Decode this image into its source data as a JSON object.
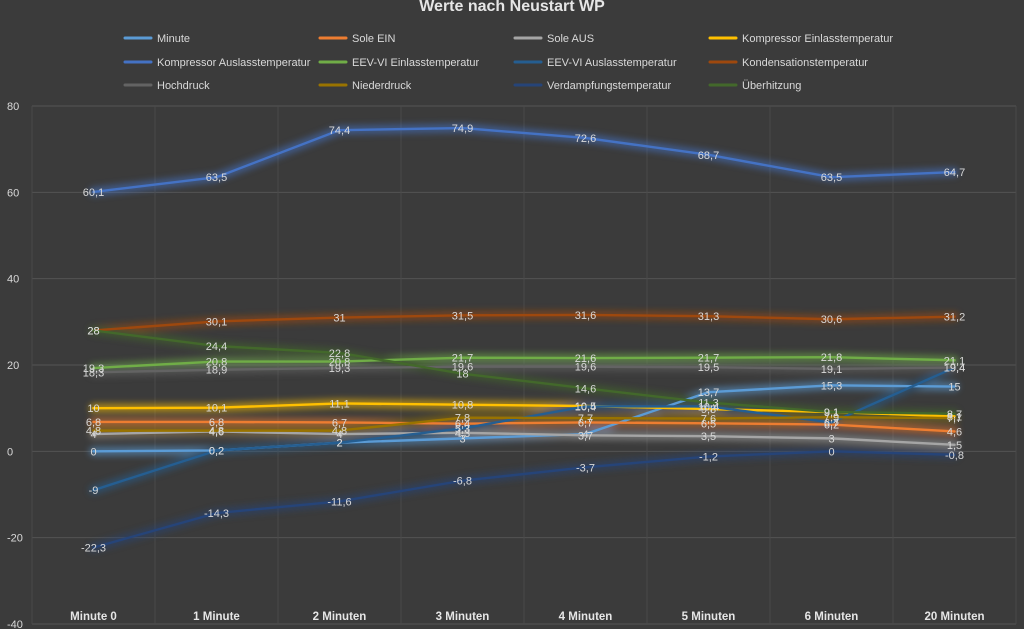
{
  "chart_data": {
    "type": "line",
    "title": "Werte nach Neustart WP",
    "xlabel": "",
    "ylabel": "",
    "ylim": [
      -40,
      80
    ],
    "yticks": [
      -40,
      -20,
      0,
      20,
      40,
      60,
      80
    ],
    "grid": true,
    "legend_position": "top",
    "categories": [
      "Minute 0",
      "1 Minute",
      "2 Minuten",
      "3 Minuten",
      "4 Minuten",
      "5 Minuten",
      "6 Minuten",
      "20 Minuten"
    ],
    "series": [
      {
        "name": "Minute",
        "color": "#5b9bd5",
        "values": [
          0,
          0.2,
          2,
          3,
          4,
          13.7,
          15.3,
          15
        ]
      },
      {
        "name": "Sole EIN",
        "color": "#ed7d31",
        "values": [
          6.8,
          6.8,
          6.7,
          6.4,
          6.7,
          6.5,
          6.2,
          4.6
        ]
      },
      {
        "name": "Sole AUS",
        "color": "#a5a5a5",
        "values": [
          4,
          4.6,
          4,
          4.3,
          3.7,
          3.5,
          3,
          1.5
        ]
      },
      {
        "name": "Kompressor Einlasstemperatur",
        "color": "#ffc000",
        "values": [
          10,
          10.1,
          11.1,
          10.8,
          10.5,
          9.8,
          9.1,
          8.1
        ]
      },
      {
        "name": "Kompressor Auslasstemperatur",
        "color": "#4472c4",
        "values": [
          60.1,
          63.5,
          74.4,
          74.9,
          72.6,
          68.7,
          63.5,
          64.7
        ]
      },
      {
        "name": "EEV-VI Einlasstemperatur",
        "color": "#70ad47",
        "values": [
          19.3,
          20.8,
          20.8,
          21.7,
          21.6,
          21.7,
          21.8,
          21.1
        ]
      },
      {
        "name": "EEV-VI Auslasstemperatur",
        "color": "#255e91",
        "values": [
          -9,
          0.2,
          2,
          5.3,
          10.4,
          10.4,
          6.7,
          19.4
        ]
      },
      {
        "name": "Kondensationstemperatur",
        "color": "#9e480e",
        "values": [
          28,
          30.1,
          31,
          31.5,
          31.6,
          31.3,
          30.6,
          31.2
        ]
      },
      {
        "name": "Hochdruck",
        "color": "#636363",
        "values": [
          18.3,
          18.9,
          19.3,
          19.6,
          19.6,
          19.5,
          19.1,
          19.4
        ]
      },
      {
        "name": "Niederdruck",
        "color": "#997300",
        "values": [
          4.8,
          4.8,
          4.8,
          7.8,
          7.7,
          7.6,
          7.9,
          7.7
        ]
      },
      {
        "name": "Verdampfungstemperatur",
        "color": "#264478",
        "values": [
          -22.3,
          -14.3,
          -11.6,
          -6.8,
          -3.7,
          -1.2,
          0,
          -0.8
        ]
      },
      {
        "name": "Überhitzung",
        "color": "#43682b",
        "values": [
          28,
          24.4,
          22.8,
          18,
          14.6,
          11.3,
          9.1,
          8.7
        ]
      }
    ]
  }
}
